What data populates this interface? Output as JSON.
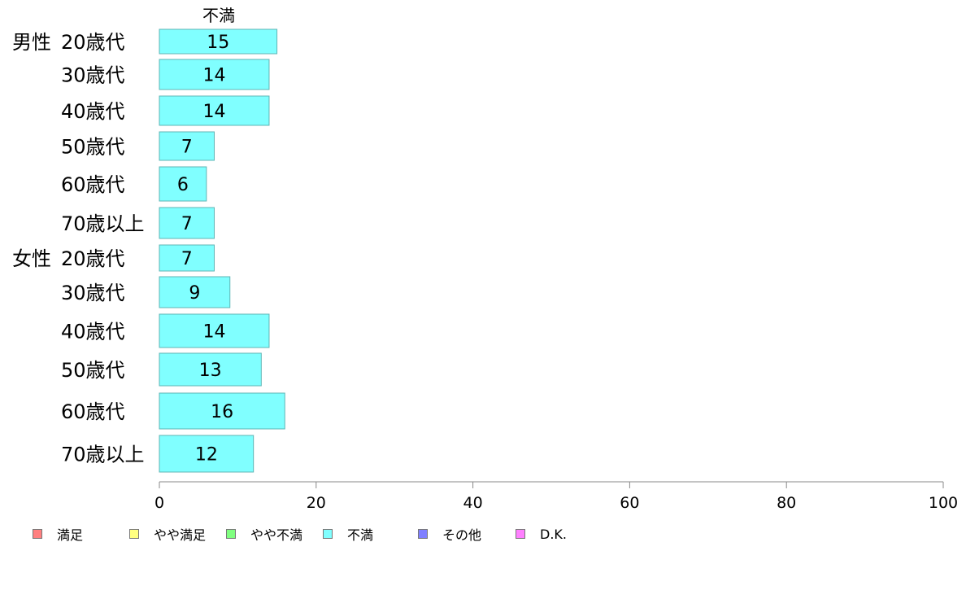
{
  "chart_data": {
    "type": "bar",
    "orientation": "horizontal",
    "title": "不満",
    "xlim": [
      0,
      100
    ],
    "xticks": [
      0,
      20,
      40,
      60,
      80,
      100
    ],
    "grid": false,
    "legend_position": "bottom-left",
    "categories": [
      {
        "group": "男性",
        "label": "20歳代"
      },
      {
        "group": "",
        "label": "30歳代"
      },
      {
        "group": "",
        "label": "40歳代"
      },
      {
        "group": "",
        "label": "50歳代"
      },
      {
        "group": "",
        "label": "60歳代"
      },
      {
        "group": "",
        "label": "70歳以上"
      },
      {
        "group": "女性",
        "label": "20歳代"
      },
      {
        "group": "",
        "label": "30歳代"
      },
      {
        "group": "",
        "label": "40歳代"
      },
      {
        "group": "",
        "label": "50歳代"
      },
      {
        "group": "",
        "label": "60歳代"
      },
      {
        "group": "",
        "label": "70歳以上"
      }
    ],
    "series": [
      {
        "name": "不満",
        "color": "#80ffff",
        "values": [
          15,
          14,
          14,
          7,
          6,
          7,
          7,
          9,
          14,
          13,
          16,
          12
        ]
      }
    ]
  },
  "legend": {
    "items": [
      {
        "label": "満足",
        "color": "#ff8080"
      },
      {
        "label": "やや満足",
        "color": "#ffff80"
      },
      {
        "label": "やや不満",
        "color": "#80ff80"
      },
      {
        "label": "不満",
        "color": "#80ffff"
      },
      {
        "label": "その他",
        "color": "#8080ff"
      },
      {
        "label": "D.K.",
        "color": "#ff80ff"
      }
    ]
  }
}
